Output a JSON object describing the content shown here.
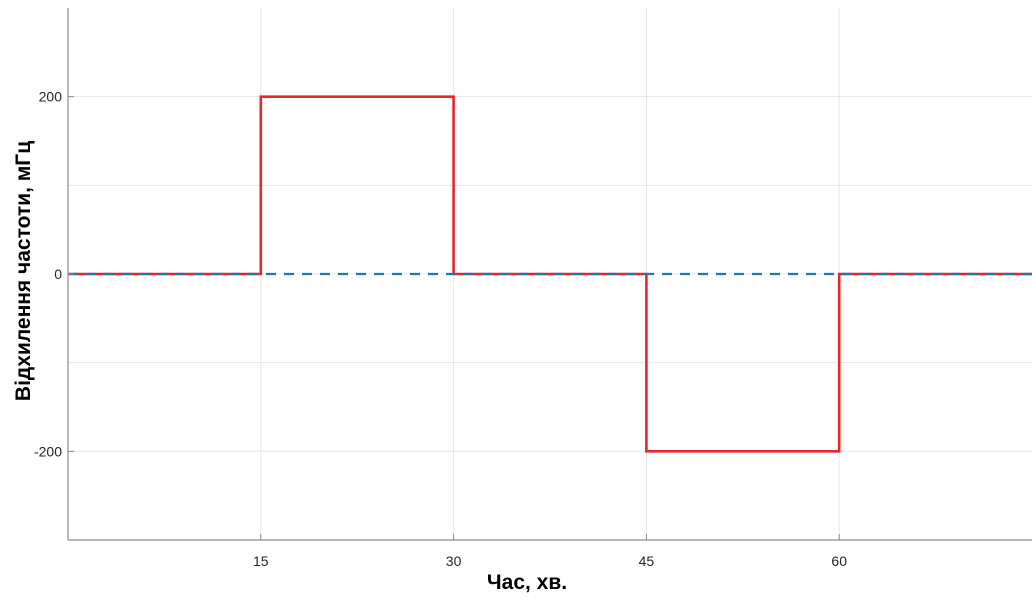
{
  "chart_data": {
    "type": "line",
    "xlabel": "Час, хв.",
    "ylabel": "Відхилення частоти, мГц",
    "xlim": [
      0,
      75
    ],
    "ylim": [
      -300,
      300
    ],
    "x_ticks": [
      15,
      30,
      45,
      60
    ],
    "y_ticks": [
      -200,
      0,
      200
    ],
    "y_tick_labels": [
      "-200",
      "0",
      "200"
    ],
    "grid": true,
    "series": [
      {
        "style": "solid",
        "color": "#e8262a",
        "step": true,
        "x": [
          0,
          15,
          15,
          30,
          30,
          45,
          45,
          60,
          60,
          75
        ],
        "y": [
          0,
          0,
          200,
          200,
          0,
          0,
          -200,
          -200,
          0,
          0
        ]
      },
      {
        "style": "dashed",
        "color": "#1f78b4",
        "x": [
          0,
          75
        ],
        "y": [
          0,
          0
        ]
      }
    ]
  }
}
